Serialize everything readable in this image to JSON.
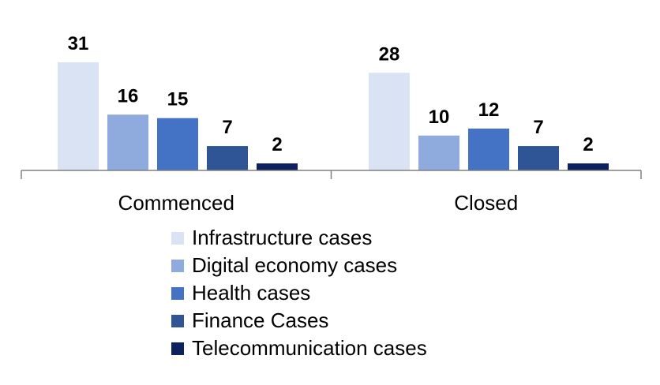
{
  "chart_data": {
    "type": "bar",
    "title": "",
    "xlabel": "",
    "ylabel": "",
    "categories": [
      "Commenced",
      "Closed"
    ],
    "series": [
      {
        "name": "Infrastructure cases",
        "color": "#d9e3f4",
        "values": [
          31,
          28
        ]
      },
      {
        "name": "Digital economy cases",
        "color": "#8faadc",
        "values": [
          16,
          10
        ]
      },
      {
        "name": "Health cases",
        "color": "#4472c4",
        "values": [
          15,
          12
        ]
      },
      {
        "name": "Finance Cases",
        "color": "#2f5597",
        "values": [
          7,
          7
        ]
      },
      {
        "name": "Telecommunication cases",
        "color": "#0d2060",
        "values": [
          2,
          2
        ]
      }
    ],
    "ylim": [
      0,
      31
    ],
    "grid": false,
    "legend_position": "bottom"
  }
}
